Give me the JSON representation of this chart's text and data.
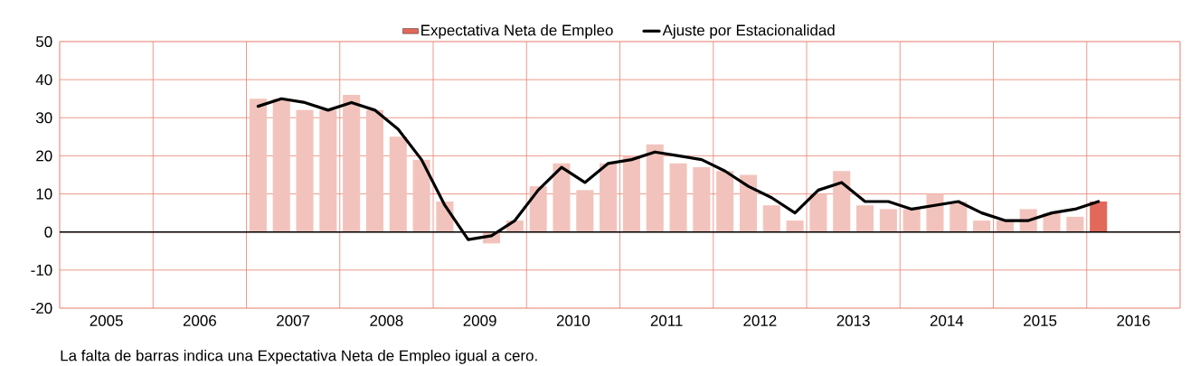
{
  "chart_data": {
    "type": "bar",
    "x": [
      2007.125,
      2007.375,
      2007.625,
      2007.875,
      2008.125,
      2008.375,
      2008.625,
      2008.875,
      2009.125,
      2009.375,
      2009.625,
      2009.875,
      2010.125,
      2010.375,
      2010.625,
      2010.875,
      2011.125,
      2011.375,
      2011.625,
      2011.875,
      2012.125,
      2012.375,
      2012.625,
      2012.875,
      2013.125,
      2013.375,
      2013.625,
      2013.875,
      2014.125,
      2014.375,
      2014.625,
      2014.875,
      2015.125,
      2015.375,
      2015.625,
      2015.875,
      2016.125
    ],
    "xlim": [
      2005,
      2017
    ],
    "xticks": [
      {
        "value": 2005,
        "label": null
      },
      {
        "value": 2006,
        "label": null
      },
      {
        "value": 2007,
        "label": null
      },
      {
        "value": 2008,
        "label": null
      },
      {
        "value": 2009,
        "label": null
      },
      {
        "value": 2010,
        "label": null
      },
      {
        "value": 2011,
        "label": null
      },
      {
        "value": 2012,
        "label": null
      },
      {
        "value": 2013,
        "label": null
      },
      {
        "value": 2014,
        "label": null
      },
      {
        "value": 2015,
        "label": null
      },
      {
        "value": 2016,
        "label": null
      },
      {
        "value": 2017,
        "label": null
      },
      {
        "value": 2005.5,
        "label": "2005"
      },
      {
        "value": 2006.5,
        "label": "2006"
      },
      {
        "value": 2007.5,
        "label": "2007"
      },
      {
        "value": 2008.5,
        "label": "2008"
      },
      {
        "value": 2009.5,
        "label": "2009"
      },
      {
        "value": 2010.5,
        "label": "2010"
      },
      {
        "value": 2011.5,
        "label": "2011"
      },
      {
        "value": 2012.5,
        "label": "2012"
      },
      {
        "value": 2013.5,
        "label": "2013"
      },
      {
        "value": 2014.5,
        "label": "2014"
      },
      {
        "value": 2015.5,
        "label": "2015"
      },
      {
        "value": 2016.5,
        "label": "2016"
      }
    ],
    "ylim": [
      -20,
      50
    ],
    "yticks": [
      -20,
      -10,
      0,
      10,
      20,
      30,
      40,
      50
    ],
    "grid": true,
    "legend": "top",
    "ref_lines": [
      {
        "axis": "y",
        "value": 0,
        "color": "#000000"
      }
    ],
    "annotations": [
      "La falta de barras indica una Expectativa Neta de Empleo igual a cero."
    ],
    "series": [
      {
        "name": "Expectativa Neta de Empleo",
        "color": "#e2695a",
        "colors": [
          "#f2c3bc",
          "#f2c3bc",
          "#f2c3bc",
          "#f2c3bc",
          "#f2c3bc",
          "#f2c3bc",
          "#f2c3bc",
          "#f2c3bc",
          "#f2c3bc",
          "#f2c3bc",
          "#f2c3bc",
          "#f2c3bc",
          "#f2c3bc",
          "#f2c3bc",
          "#f2c3bc",
          "#f2c3bc",
          "#f2c3bc",
          "#f2c3bc",
          "#f2c3bc",
          "#f2c3bc",
          "#f2c3bc",
          "#f2c3bc",
          "#f2c3bc",
          "#f2c3bc",
          "#f2c3bc",
          "#f2c3bc",
          "#f2c3bc",
          "#f2c3bc",
          "#f2c3bc",
          "#f2c3bc",
          "#f2c3bc",
          "#f2c3bc",
          "#f2c3bc",
          "#f2c3bc",
          "#f2c3bc",
          "#f2c3bc",
          "#e2695a"
        ],
        "values": [
          35,
          35,
          32,
          32,
          36,
          32,
          25,
          19,
          8,
          0,
          -3,
          3,
          12,
          18,
          11,
          18,
          20,
          23,
          18,
          17,
          16,
          15,
          7,
          3,
          10,
          16,
          7,
          6,
          6,
          10,
          8,
          3,
          3,
          6,
          5,
          4,
          8
        ]
      },
      {
        "name": "Ajuste por Estacionalidad",
        "type": "line",
        "color": "#000000",
        "values": [
          33,
          35,
          34,
          32,
          34,
          32,
          27,
          19,
          7,
          -2,
          -1,
          3,
          11,
          17,
          13,
          18,
          19,
          21,
          20,
          19,
          16,
          12,
          9,
          5,
          11,
          13,
          8,
          8,
          6,
          7,
          8,
          5,
          3,
          3,
          5,
          6,
          8
        ]
      }
    ]
  }
}
